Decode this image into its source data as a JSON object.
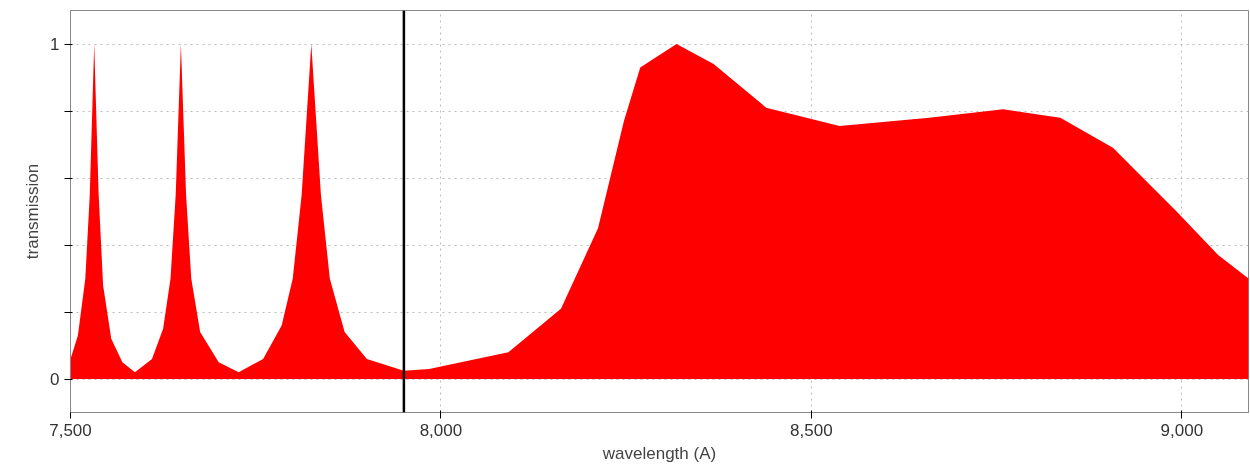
{
  "chart_data": {
    "type": "area",
    "xlabel": "wavelength (A)",
    "ylabel": "transmission",
    "x": [
      7500,
      7510,
      7520,
      7526,
      7532,
      7538,
      7544,
      7555,
      7570,
      7587,
      7610,
      7625,
      7635,
      7642,
      7649,
      7656,
      7663,
      7675,
      7700,
      7727,
      7760,
      7785,
      7800,
      7812,
      7825,
      7838,
      7850,
      7870,
      7900,
      7950,
      7984,
      8091,
      8162,
      8212,
      8247,
      8269,
      8318,
      8368,
      8439,
      8538,
      8659,
      8759,
      8836,
      8907,
      8993,
      9049,
      9090
    ],
    "series": [
      {
        "color": "#ff0000",
        "values": [
          0.06,
          0.13,
          0.3,
          0.55,
          1,
          0.55,
          0.28,
          0.12,
          0.05,
          0.02,
          0.06,
          0.15,
          0.3,
          0.55,
          1,
          0.55,
          0.3,
          0.14,
          0.05,
          0.02,
          0.06,
          0.16,
          0.3,
          0.55,
          1,
          0.55,
          0.3,
          0.14,
          0.06,
          0.025,
          0.03,
          0.08,
          0.21,
          0.45,
          0.77,
          0.93,
          1,
          0.94,
          0.81,
          0.755,
          0.78,
          0.805,
          0.78,
          0.69,
          0.5,
          0.37,
          0.3
        ]
      }
    ],
    "xlim": [
      7500,
      9090
    ],
    "ylim": [
      -0.1,
      1.1
    ],
    "xticks": [
      {
        "value": 7500,
        "label": "7,500"
      },
      {
        "value": 8000,
        "label": "8,000"
      },
      {
        "value": 8500,
        "label": "8,500"
      },
      {
        "value": 9000,
        "label": "9,000"
      }
    ],
    "yticks": [
      0,
      {
        "value": 0.2,
        "label": null
      },
      {
        "value": 0.4,
        "label": null
      },
      {
        "value": 0.6,
        "label": null
      },
      {
        "value": 0.8,
        "label": null
      },
      1
    ],
    "ref_lines": [
      {
        "axis": "x",
        "value": 7950,
        "color": "#000000"
      }
    ],
    "grid": true,
    "line_style": "dotted"
  }
}
